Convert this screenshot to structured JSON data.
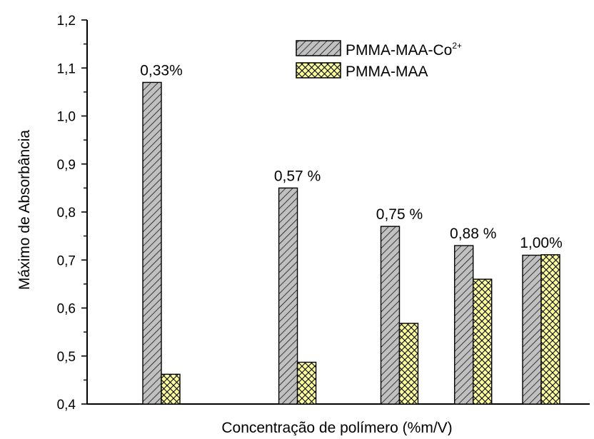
{
  "chart_data": {
    "type": "bar",
    "title": "",
    "xlabel": "Concentração de polímero (%m/V)",
    "ylabel": "Máximo de Absorbância",
    "ylim": [
      0.4,
      1.2
    ],
    "yticks": [
      "0,4",
      "0,5",
      "0,6",
      "0,7",
      "0,8",
      "0,9",
      "1,0",
      "1,1",
      "1,2"
    ],
    "grid": false,
    "legend_position": "top-right",
    "categories": [
      "0,33%",
      "0,57 %",
      "0,75 %",
      "0,88 %",
      "1,00%"
    ],
    "category_x": [
      0.33,
      0.57,
      0.75,
      0.88,
      1.0
    ],
    "series": [
      {
        "name": "PMMA-MAA-Co",
        "name_sup": "2+",
        "pattern": "diagonal-hatch",
        "color": "#c0c0c0",
        "values": [
          1.07,
          0.85,
          0.77,
          0.73,
          0.71
        ]
      },
      {
        "name": "PMMA-MAA",
        "pattern": "crosshatch",
        "color": "#ffff99",
        "values": [
          0.462,
          0.487,
          0.568,
          0.66,
          0.711
        ]
      }
    ]
  }
}
